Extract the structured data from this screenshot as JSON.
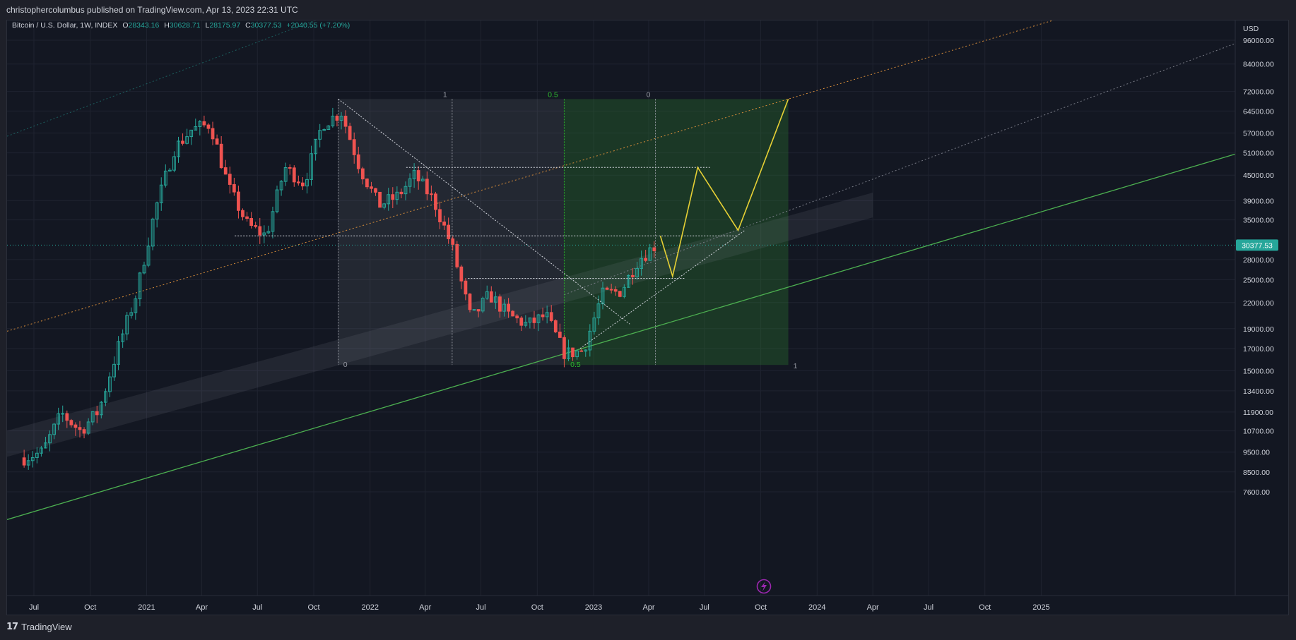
{
  "header": {
    "published": "christophercolumbus published on TradingView.com, Apr 13, 2023 22:31 UTC"
  },
  "legend": {
    "symbol": "Bitcoin / U.S. Dollar, 1W, INDEX",
    "o_label": "O",
    "o_value": "28343.16",
    "h_label": "H",
    "h_value": "30628.71",
    "l_label": "L",
    "l_value": "28175.97",
    "c_label": "C",
    "c_value": "30377.53",
    "change": "+2040.55 (+7.20%)"
  },
  "footer": {
    "logo": "17",
    "brand": "TradingView"
  },
  "colors": {
    "background": "#131722",
    "up": "#26a69a",
    "down": "#ef5350",
    "price_tag": "#26a69a",
    "projection": "#e6d035",
    "fib_green": "#2eb82e",
    "channel_green": "#4caf50",
    "orange_line": "#d98e3a",
    "event_icon": "#9c27b0"
  },
  "chart_data": {
    "type": "candlestick",
    "timeframe": "1W",
    "y_scale": "log",
    "currency": "USD",
    "last_price": "30377.53",
    "ylim": [
      6800,
      110000
    ],
    "y_ticks": [
      "96000.00",
      "84000.00",
      "72000.00",
      "64500.00",
      "57000.00",
      "51000.00",
      "45000.00",
      "39000.00",
      "35000.00",
      "28000.00",
      "25000.00",
      "22000.00",
      "19000.00",
      "17000.00",
      "15000.00",
      "13400.00",
      "11900.00",
      "10700.00",
      "9500.00",
      "8500.00",
      "7600.00"
    ],
    "x_ticks": [
      {
        "label": "Jul",
        "date": "2020-07-01"
      },
      {
        "label": "Oct",
        "date": "2020-10-01"
      },
      {
        "label": "2021",
        "date": "2021-01-01"
      },
      {
        "label": "Apr",
        "date": "2021-04-01"
      },
      {
        "label": "Jul",
        "date": "2021-07-01"
      },
      {
        "label": "Oct",
        "date": "2021-10-01"
      },
      {
        "label": "2022",
        "date": "2022-01-01"
      },
      {
        "label": "Apr",
        "date": "2022-04-01"
      },
      {
        "label": "Jul",
        "date": "2022-07-01"
      },
      {
        "label": "Oct",
        "date": "2022-10-01"
      },
      {
        "label": "2023",
        "date": "2023-01-01"
      },
      {
        "label": "Apr",
        "date": "2023-04-01"
      },
      {
        "label": "Jul",
        "date": "2023-07-01"
      },
      {
        "label": "Oct",
        "date": "2023-10-01"
      },
      {
        "label": "2024",
        "date": "2024-01-01"
      },
      {
        "label": "Apr",
        "date": "2024-04-01"
      },
      {
        "label": "Jul",
        "date": "2024-07-01"
      },
      {
        "label": "Oct",
        "date": "2024-10-01"
      },
      {
        "label": "2025",
        "date": "2025-01-01"
      }
    ],
    "monthly_closes": [
      {
        "date": "2020-06-15",
        "close": 9200
      },
      {
        "date": "2020-07-15",
        "close": 9500
      },
      {
        "date": "2020-08-15",
        "close": 11800
      },
      {
        "date": "2020-09-15",
        "close": 10700
      },
      {
        "date": "2020-10-15",
        "close": 12000
      },
      {
        "date": "2020-11-15",
        "close": 17000
      },
      {
        "date": "2020-12-15",
        "close": 23000
      },
      {
        "date": "2021-01-15",
        "close": 37000
      },
      {
        "date": "2021-02-15",
        "close": 52000
      },
      {
        "date": "2021-03-15",
        "close": 58000
      },
      {
        "date": "2021-04-15",
        "close": 60000
      },
      {
        "date": "2021-05-15",
        "close": 42000
      },
      {
        "date": "2021-06-15",
        "close": 34000
      },
      {
        "date": "2021-07-15",
        "close": 32000
      },
      {
        "date": "2021-08-15",
        "close": 47000
      },
      {
        "date": "2021-09-15",
        "close": 43000
      },
      {
        "date": "2021-10-15",
        "close": 60000
      },
      {
        "date": "2021-11-15",
        "close": 64000
      },
      {
        "date": "2021-12-15",
        "close": 47000
      },
      {
        "date": "2022-01-15",
        "close": 38000
      },
      {
        "date": "2022-02-15",
        "close": 40000
      },
      {
        "date": "2022-03-15",
        "close": 45000
      },
      {
        "date": "2022-04-15",
        "close": 39000
      },
      {
        "date": "2022-05-15",
        "close": 30000
      },
      {
        "date": "2022-06-15",
        "close": 20000
      },
      {
        "date": "2022-07-15",
        "close": 23000
      },
      {
        "date": "2022-08-15",
        "close": 20500
      },
      {
        "date": "2022-09-15",
        "close": 19400
      },
      {
        "date": "2022-10-15",
        "close": 20500
      },
      {
        "date": "2022-11-15",
        "close": 16500
      },
      {
        "date": "2022-12-15",
        "close": 16800
      },
      {
        "date": "2023-01-15",
        "close": 23000
      },
      {
        "date": "2023-02-15",
        "close": 23500
      },
      {
        "date": "2023-03-15",
        "close": 28000
      },
      {
        "date": "2023-04-12",
        "close": 30377.53
      }
    ],
    "fib_labels": {
      "top_left": "1",
      "top_mid": "0.5",
      "top_right": "0",
      "bottom_left": "0",
      "bottom_mid": "0.5",
      "bottom_right": "1"
    },
    "projection_path": [
      {
        "date": "2023-04-20",
        "price": 32000
      },
      {
        "date": "2023-05-10",
        "price": 25500
      },
      {
        "date": "2023-06-20",
        "price": 47000
      },
      {
        "date": "2023-08-25",
        "price": 33000
      },
      {
        "date": "2023-11-15",
        "price": 69000
      }
    ],
    "horizontal_levels": [
      {
        "price": 47000,
        "from": "2022-03-01",
        "to": "2023-07-10"
      },
      {
        "price": 32000,
        "from": "2021-05-25",
        "to": "2023-08-25"
      },
      {
        "price": 25200,
        "from": "2022-06-10",
        "to": "2023-05-30"
      }
    ]
  }
}
